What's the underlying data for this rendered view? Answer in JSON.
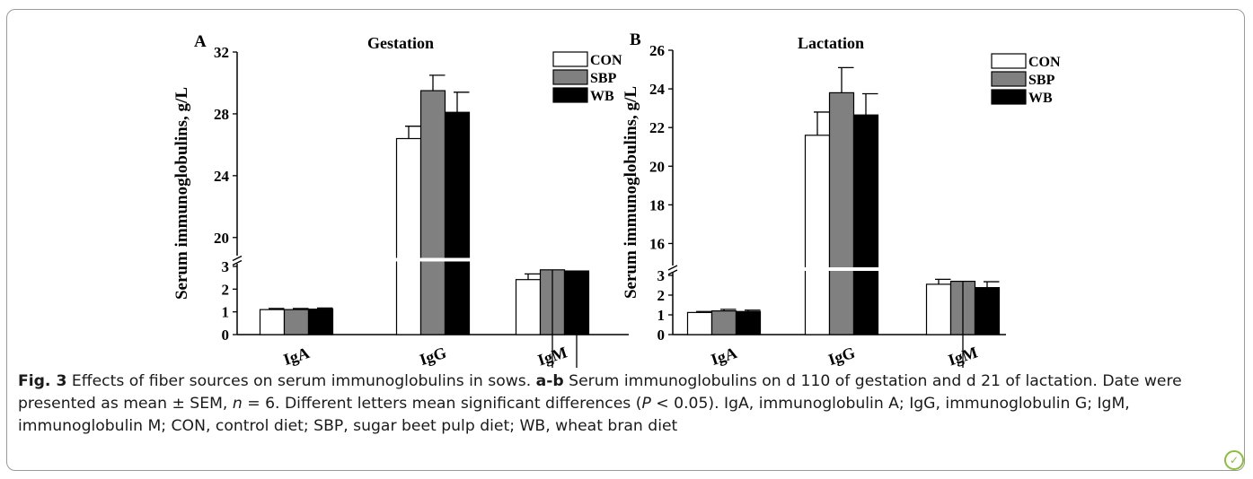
{
  "chart_data": [
    {
      "type": "bar",
      "panel_label": "A",
      "title": "Gestation",
      "ylabel": "Serum immunoglobulins, g/L",
      "categories": [
        "IgA",
        "IgG",
        "IgM"
      ],
      "series": [
        {
          "name": "CON",
          "values": [
            1.1,
            26.4,
            2.42
          ],
          "errors": [
            0.05,
            0.8,
            0.25
          ],
          "color": "#ffffff"
        },
        {
          "name": "SBP",
          "values": [
            1.1,
            29.5,
            2.85
          ],
          "errors": [
            0.05,
            1.0,
            0.38
          ],
          "color": "#808080"
        },
        {
          "name": "WB",
          "values": [
            1.12,
            28.1,
            2.8
          ],
          "errors": [
            0.05,
            1.3,
            0.3
          ],
          "color": "#000000"
        }
      ],
      "axis_break": true,
      "lower_ticks": [
        "0",
        "1",
        "2",
        "3"
      ],
      "upper_ticks": [
        "20",
        "24",
        "28",
        "32"
      ],
      "lower_range": [
        0,
        3
      ],
      "upper_range": [
        19,
        32
      ],
      "legend_position": "top-right"
    },
    {
      "type": "bar",
      "panel_label": "B",
      "title": "Lactation",
      "ylabel": "Serum immunoglobulins, g/L",
      "categories": [
        "IgA",
        "IgG",
        "IgM"
      ],
      "series": [
        {
          "name": "CON",
          "values": [
            1.12,
            21.6,
            2.55
          ],
          "errors": [
            0.05,
            1.2,
            0.25
          ],
          "color": "#ffffff"
        },
        {
          "name": "SBP",
          "values": [
            1.2,
            23.8,
            2.7
          ],
          "errors": [
            0.08,
            1.3,
            0.4
          ],
          "color": "#808080"
        },
        {
          "name": "WB",
          "values": [
            1.17,
            22.65,
            2.38
          ],
          "errors": [
            0.07,
            1.1,
            0.3
          ],
          "color": "#000000"
        }
      ],
      "axis_break": true,
      "lower_ticks": [
        "0",
        "1",
        "2",
        "3"
      ],
      "upper_ticks": [
        "16",
        "18",
        "20",
        "22",
        "24",
        "26"
      ],
      "lower_range": [
        0,
        3
      ],
      "upper_range": [
        15,
        26
      ],
      "legend_position": "top-right"
    }
  ],
  "caption": {
    "fig_label": "Fig. 3",
    "title": " Effects of fiber sources on serum immunoglobulins in sows. ",
    "panels_label": "a-b",
    "part1": " Serum immunoglobulins on d 110 of gestation and d 21 of lactation. Date were presented as mean ± SEM, ",
    "n_symbol": "n",
    "part2": " = 6. Different letters mean significant differences (",
    "p_symbol": "P",
    "part3": " < 0.05). IgA, immunoglobulin A; IgG, immunoglobulin G; IgM, immunoglobulin M; CON, control diet; SBP, sugar beet pulp diet; WB, wheat bran diet"
  }
}
